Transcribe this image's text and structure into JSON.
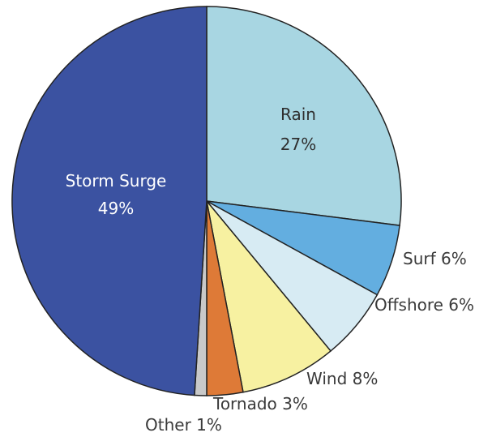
{
  "chart_data": {
    "type": "pie",
    "slices": [
      {
        "name": "Rain",
        "value": 27,
        "label": "Rain",
        "pct_label": "27%",
        "color": "#a8d6e2"
      },
      {
        "name": "Surf",
        "value": 6,
        "label": "Surf 6%",
        "color": "#63aee0"
      },
      {
        "name": "Offshore",
        "value": 6,
        "label": "Offshore 6%",
        "color": "#d7ebf3"
      },
      {
        "name": "Wind",
        "value": 8,
        "label": "Wind 8%",
        "color": "#f7f1a1"
      },
      {
        "name": "Tornado",
        "value": 3,
        "label": "Tornado 3%",
        "color": "#de7a37"
      },
      {
        "name": "Other",
        "value": 1,
        "label": "Other 1%",
        "color": "#c9c9c9"
      },
      {
        "name": "Storm Surge",
        "value": 49,
        "label": "Storm Surge",
        "pct_label": "49%",
        "color": "#3b52a1"
      }
    ],
    "start_angle_deg": 0,
    "direction": "clockwise",
    "slice_border_color": "#222222"
  }
}
